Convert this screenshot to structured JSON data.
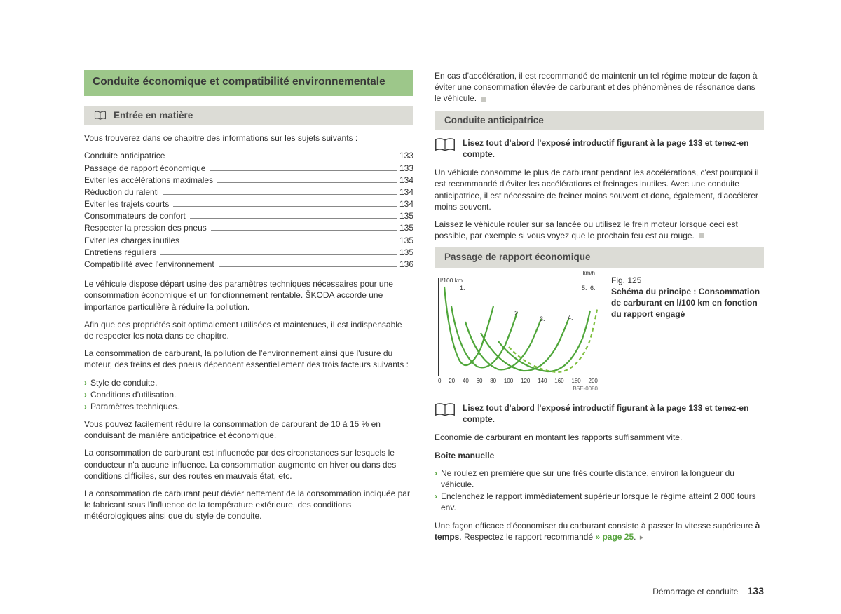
{
  "title_banner": "Conduite économique et compatibilité environnementale",
  "intro_heading": "Entrée en matière",
  "intro_para": "Vous trouverez dans ce chapitre des informations sur les sujets suivants :",
  "toc": [
    {
      "label": "Conduite anticipatrice",
      "page": "133"
    },
    {
      "label": "Passage de rapport économique",
      "page": "133"
    },
    {
      "label": "Eviter les accélérations maximales",
      "page": "134"
    },
    {
      "label": "Réduction du ralenti",
      "page": "134"
    },
    {
      "label": "Eviter les trajets courts",
      "page": "134"
    },
    {
      "label": "Consommateurs de confort",
      "page": "135"
    },
    {
      "label": "Respecter la pression des pneus",
      "page": "135"
    },
    {
      "label": "Eviter les charges inutiles",
      "page": "135"
    },
    {
      "label": "Entretiens réguliers",
      "page": "135"
    },
    {
      "label": "Compatibilité avec l'environnement",
      "page": "136"
    }
  ],
  "para1": "Le véhicule dispose départ usine des paramètres techniques nécessaires pour une consommation économique et un fonctionnement rentable. ŠKODA accorde une importance particulière à réduire la pollution.",
  "para2": "Afin que ces propriétés soit optimalement utilisées et maintenues, il est indispensable de respecter les nota dans ce chapitre.",
  "para3": "La consommation de carburant, la pollution de l'environnement ainsi que l'usure du moteur, des freins et des pneus dépendent essentiellement des trois facteurs suivants :",
  "factors": [
    "Style de conduite.",
    "Conditions d'utilisation.",
    "Paramètres techniques."
  ],
  "para4": "Vous pouvez facilement réduire la consommation de carburant de 10 à 15 % en conduisant de manière anticipatrice et économique.",
  "para5": "La consommation de carburant est influencée par des circonstances sur lesquels le conducteur n'a aucune influence. La consommation augmente en hiver ou dans des conditions difficiles, sur des routes en mauvais état, etc.",
  "para6": "La consommation de carburant peut dévier nettement de la consommation indiquée par le fabricant sous l'influence de la température extérieure, des conditions météorologiques ainsi que du style de conduite.",
  "right_top_para": "En cas d'accélération, il est recommandé de maintenir un tel régime moteur de façon à éviter une consommation élevée de carburant et des phénomènes de résonance dans le véhicule.",
  "sec1_heading": "Conduite anticipatrice",
  "note1": "Lisez tout d'abord l'exposé introductif figurant à la page 133 et tenez-en compte.",
  "sec1_p1": "Un véhicule consomme le plus de carburant pendant les accélérations, c'est pourquoi il est recommandé d'éviter les accélérations et freinages inutiles. Avec une conduite anticipatrice, il est nécessaire de freiner moins souvent et donc, également, d'accélérer moins souvent.",
  "sec1_p2": "Laissez le véhicule rouler sur sa lancée ou utilisez le frein moteur lorsque ceci est possible, par exemple si vous voyez que le prochain feu est au rouge.",
  "sec2_heading": "Passage de rapport économique",
  "fig": {
    "number": "Fig. 125",
    "title": "Schéma du principe : Consommation de carburant en l/100 km en fonction du rapport engagé",
    "ylabel": "l/100 km",
    "xunit": "km/h",
    "xticks": [
      "0",
      "20",
      "40",
      "60",
      "80",
      "100",
      "120",
      "140",
      "160",
      "180",
      "200"
    ],
    "code": "B5E-0080",
    "gear_labels": [
      "1.",
      "2.",
      "3.",
      "4.",
      "5.",
      "6."
    ],
    "curves_color_solid": "#4fa63a",
    "curve_color_dashed": "#7fbf3f",
    "background": "#ffffff",
    "axis_color": "#333333"
  },
  "note2": "Lisez tout d'abord l'exposé introductif figurant à la page 133 et tenez-en compte.",
  "sec2_p1": "Economie de carburant en montant les rapports suffisamment vite.",
  "sec2_sub": "Boîte manuelle",
  "sec2_bullets": [
    "Ne roulez en première que sur une très courte distance, environ la longueur du véhicule.",
    "Enclenchez le rapport immédiatement supérieur lorsque le régime atteint 2 000 tours env."
  ],
  "sec2_p2a": "Une façon efficace d'économiser du carburant consiste à passer la vitesse supérieure ",
  "sec2_p2b": "à temps",
  "sec2_p2c": ". Respectez le rapport recommandé ",
  "sec2_link": "» page 25",
  "sec2_p2d": ".",
  "footer_section": "Démarrage et conduite",
  "footer_page": "133"
}
